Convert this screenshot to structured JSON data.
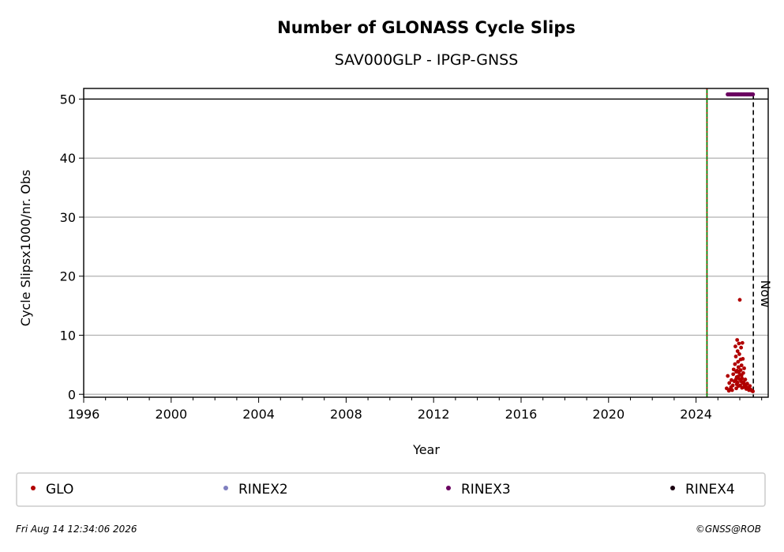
{
  "chart_data": {
    "type": "scatter",
    "title": "Number of GLONASS Cycle Slips",
    "subtitle": "SAV000GLP - IPGP-GNSS",
    "xlabel": "Year",
    "ylabel": "Cycle Slipsx1000/nr. Obs",
    "xlim": [
      1996.0,
      2027.3
    ],
    "ylim": [
      -0.5,
      51.8
    ],
    "x_ticks": [
      1996,
      2000,
      2004,
      2008,
      2012,
      2016,
      2020,
      2024
    ],
    "y_ticks": [
      0,
      10,
      20,
      30,
      40,
      50
    ],
    "grid": "horizontal",
    "hline": 50,
    "vlines": [
      {
        "x": 2024.5,
        "style": "green/red dashed"
      },
      {
        "x": 2026.62,
        "style": "black dashed",
        "label": "Now"
      }
    ],
    "legend_placement": "bottom",
    "series": [
      {
        "name": "GLO",
        "color": "#b00000",
        "points": [
          [
            2025.4,
            1.0
          ],
          [
            2025.45,
            3.1
          ],
          [
            2025.5,
            0.6
          ],
          [
            2025.52,
            1.9
          ],
          [
            2025.55,
            0.8
          ],
          [
            2025.6,
            1.2
          ],
          [
            2025.62,
            2.4
          ],
          [
            2025.65,
            0.7
          ],
          [
            2025.68,
            1.5
          ],
          [
            2025.7,
            3.4
          ],
          [
            2025.72,
            4.2
          ],
          [
            2025.75,
            2.2
          ],
          [
            2025.78,
            5.1
          ],
          [
            2025.8,
            8.1
          ],
          [
            2025.82,
            6.4
          ],
          [
            2025.84,
            3.8
          ],
          [
            2025.86,
            2.9
          ],
          [
            2025.88,
            9.2
          ],
          [
            2025.9,
            7.3
          ],
          [
            2025.92,
            5.5
          ],
          [
            2025.94,
            4.6
          ],
          [
            2025.96,
            8.6
          ],
          [
            2025.98,
            6.8
          ],
          [
            2026.0,
            16.0
          ],
          [
            2026.02,
            3.3
          ],
          [
            2026.04,
            5.9
          ],
          [
            2026.06,
            7.9
          ],
          [
            2026.08,
            4.9
          ],
          [
            2026.1,
            2.7
          ],
          [
            2026.12,
            8.7
          ],
          [
            2026.14,
            6.0
          ],
          [
            2026.16,
            3.6
          ],
          [
            2026.18,
            2.1
          ],
          [
            2026.2,
            4.4
          ],
          [
            2026.22,
            1.6
          ],
          [
            2026.25,
            2.5
          ],
          [
            2026.28,
            1.3
          ],
          [
            2026.3,
            0.9
          ],
          [
            2026.34,
            1.8
          ],
          [
            2026.38,
            1.1
          ],
          [
            2026.42,
            0.7
          ],
          [
            2026.46,
            1.4
          ],
          [
            2026.5,
            0.8
          ],
          [
            2026.55,
            0.6
          ],
          [
            2026.6,
            0.5
          ],
          [
            2025.84,
            1.0
          ],
          [
            2025.86,
            1.7
          ],
          [
            2025.9,
            2.0
          ],
          [
            2025.94,
            1.4
          ],
          [
            2025.98,
            2.6
          ],
          [
            2026.02,
            1.5
          ],
          [
            2026.06,
            2.2
          ],
          [
            2026.1,
            1.1
          ],
          [
            2025.88,
            4.0
          ],
          [
            2025.92,
            3.0
          ],
          [
            2025.96,
            3.7
          ],
          [
            2026.04,
            4.1
          ],
          [
            2026.08,
            3.2
          ],
          [
            2025.82,
            2.5
          ],
          [
            2026.14,
            1.9
          ],
          [
            2026.18,
            1.2
          ]
        ]
      },
      {
        "name": "RINEX2",
        "color": "#7f7fbf",
        "points": []
      },
      {
        "name": "RINEX3",
        "color": "#6a0060",
        "points": [
          [
            2025.45,
            50.8
          ],
          [
            2025.5,
            50.8
          ],
          [
            2025.55,
            50.8
          ],
          [
            2025.6,
            50.8
          ],
          [
            2025.65,
            50.8
          ],
          [
            2025.7,
            50.8
          ],
          [
            2025.75,
            50.8
          ],
          [
            2025.8,
            50.8
          ],
          [
            2025.85,
            50.8
          ],
          [
            2025.9,
            50.8
          ],
          [
            2025.95,
            50.8
          ],
          [
            2026.0,
            50.8
          ],
          [
            2026.05,
            50.8
          ],
          [
            2026.1,
            50.8
          ],
          [
            2026.15,
            50.8
          ],
          [
            2026.2,
            50.8
          ],
          [
            2026.25,
            50.8
          ],
          [
            2026.3,
            50.8
          ],
          [
            2026.35,
            50.8
          ],
          [
            2026.4,
            50.8
          ],
          [
            2026.45,
            50.8
          ],
          [
            2026.5,
            50.8
          ],
          [
            2026.55,
            50.8
          ],
          [
            2026.6,
            50.8
          ]
        ]
      },
      {
        "name": "RINEX4",
        "color": "#1a0010",
        "points": []
      }
    ]
  },
  "footer": {
    "timestamp": "Fri Aug 14 12:34:06 2026",
    "credit": "©GNSS@ROB"
  }
}
